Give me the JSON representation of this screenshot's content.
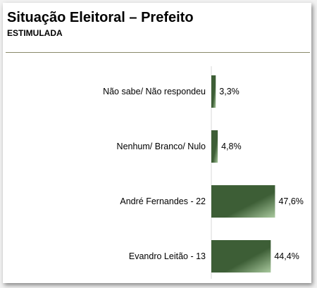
{
  "header": {
    "title": "Situação Eleitoral – Prefeito",
    "subtitle": "ESTIMULADA"
  },
  "chart_data": {
    "type": "bar",
    "orientation": "horizontal",
    "title": "Situação Eleitoral – Prefeito",
    "subtitle": "ESTIMULADA",
    "categories": [
      "Não sabe/ Não respondeu",
      "Nenhum/ Branco/ Nulo",
      "André Fernandes - 22",
      "Evandro Leitão - 13"
    ],
    "values": [
      3.3,
      4.8,
      47.6,
      44.4
    ],
    "value_labels": [
      "3,3%",
      "4,8%",
      "47,6%",
      "44,4%"
    ],
    "unit": "%",
    "xlim": [
      0,
      50
    ],
    "grid": false,
    "legend": "none",
    "bar_color_dark": "#3d5e36",
    "bar_color_light": "#a9c99e"
  }
}
